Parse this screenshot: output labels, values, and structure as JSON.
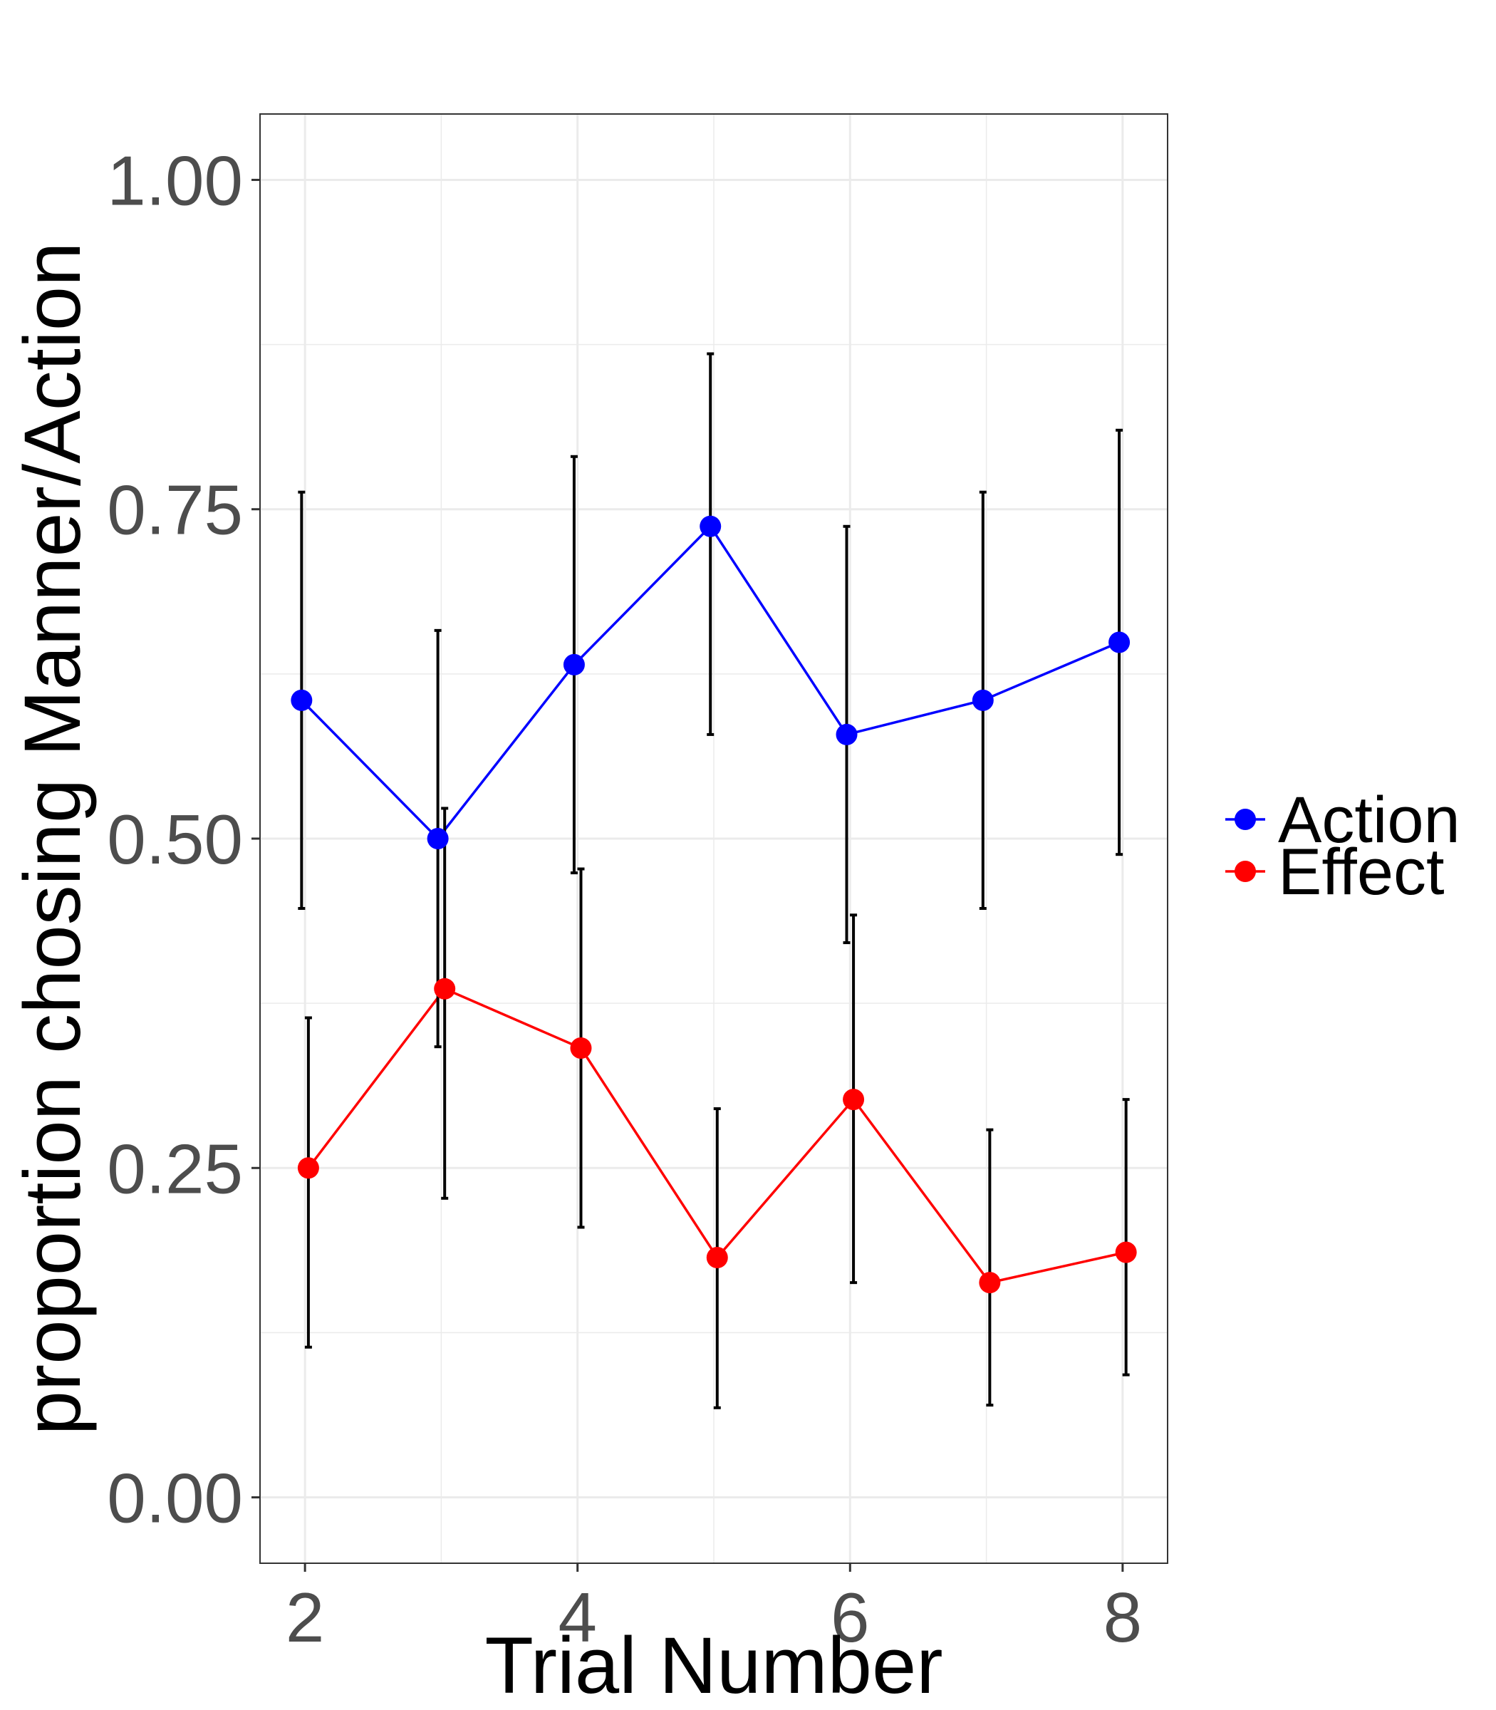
{
  "chart_data": {
    "type": "line",
    "title": "",
    "xlabel": "Trial Number",
    "ylabel": "proportion chosing Manner/Action",
    "x": [
      2,
      3,
      4,
      5,
      6,
      7,
      8
    ],
    "xlim": [
      1.67,
      8.33
    ],
    "ylim": [
      -0.05,
      1.05
    ],
    "x_ticks": [
      "2",
      "4",
      "6",
      "8"
    ],
    "y_ticks": [
      "0.00",
      "0.25",
      "0.50",
      "0.75",
      "1.00"
    ],
    "grid": true,
    "legend_position": "right",
    "series": [
      {
        "name": "Action",
        "color": "#0000ff",
        "x": [
          2,
          3,
          4,
          5,
          6,
          7,
          8
        ],
        "values": [
          0.605,
          0.5,
          0.632,
          0.737,
          0.579,
          0.605,
          0.649
        ],
        "error_low": [
          0.447,
          0.342,
          0.474,
          0.579,
          0.421,
          0.447,
          0.488
        ],
        "error_high": [
          0.763,
          0.658,
          0.79,
          0.868,
          0.737,
          0.763,
          0.81
        ]
      },
      {
        "name": "Effect",
        "color": "#ff0000",
        "x": [
          2,
          3,
          4,
          5,
          6,
          7,
          8
        ],
        "values": [
          0.25,
          0.386,
          0.341,
          0.182,
          0.302,
          0.163,
          0.186
        ],
        "error_low": [
          0.114,
          0.227,
          0.205,
          0.068,
          0.163,
          0.07,
          0.093
        ],
        "error_high": [
          0.364,
          0.523,
          0.477,
          0.295,
          0.442,
          0.279,
          0.302
        ]
      }
    ]
  }
}
